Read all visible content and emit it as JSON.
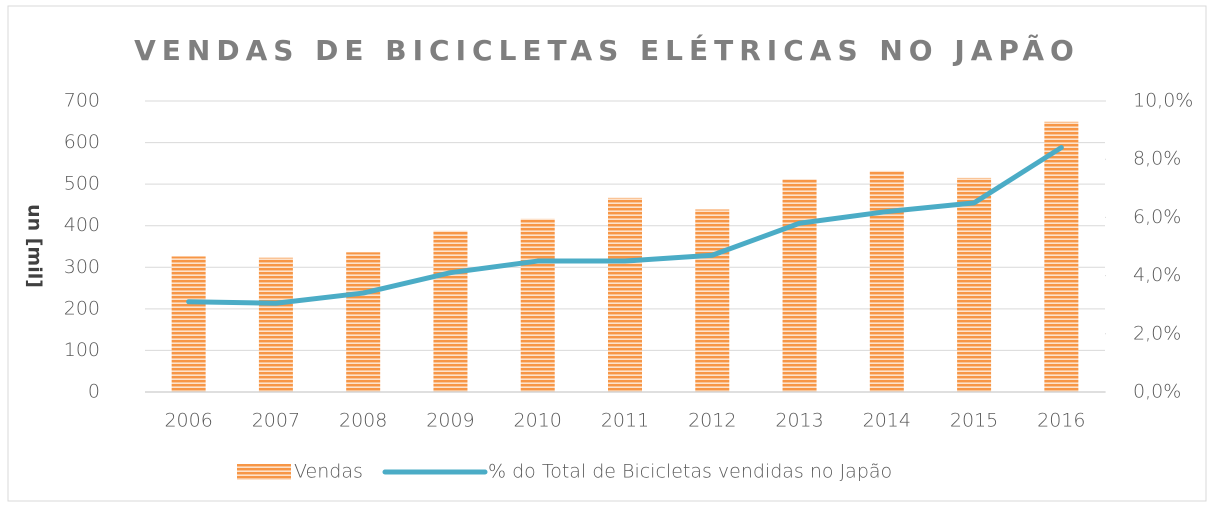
{
  "chart_data": {
    "type": "bar",
    "title": "VENDAS DE BICICLETAS ELÉTRICAS NO JAPÃO",
    "y_label": "un [mil]",
    "categories": [
      "2006",
      "2007",
      "2008",
      "2009",
      "2010",
      "2011",
      "2012",
      "2013",
      "2014",
      "2015",
      "2016"
    ],
    "series": [
      {
        "name": "Vendas",
        "type": "bar",
        "color": "#f79646",
        "values": [
          326,
          323,
          336,
          388,
          417,
          467,
          439,
          512,
          532,
          515,
          650
        ]
      },
      {
        "name": "% do Total de Bicicletas vendidas no Japão",
        "type": "line",
        "axis": "y2",
        "color": "#4bacc6",
        "values": [
          3.1,
          3.05,
          3.4,
          4.1,
          4.5,
          4.5,
          4.7,
          5.8,
          6.2,
          6.5,
          8.4
        ]
      }
    ],
    "ylim": [
      0,
      700
    ],
    "yticks": [
      0,
      100,
      200,
      300,
      400,
      500,
      600,
      700
    ],
    "y2lim": [
      0,
      10
    ],
    "y2ticks": [
      {
        "value": 0,
        "label": "0,0%"
      },
      {
        "value": 2,
        "label": "2,0%"
      },
      {
        "value": 4,
        "label": "4,0%"
      },
      {
        "value": 6,
        "label": "6,0%"
      },
      {
        "value": 8,
        "label": "8,0%"
      },
      {
        "value": 10,
        "label": "10,0%"
      }
    ],
    "grid": true,
    "legend": "bottom"
  }
}
